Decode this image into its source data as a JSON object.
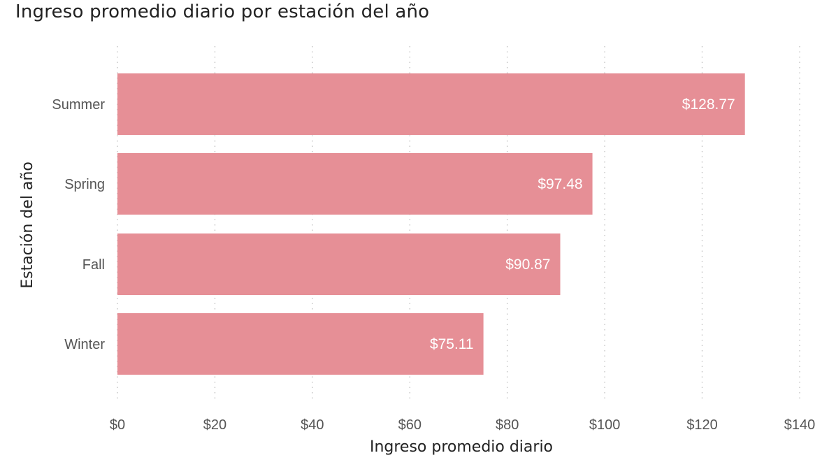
{
  "chart_data": {
    "type": "bar",
    "orientation": "horizontal",
    "title": "Ingreso promedio diario por estación del año",
    "xlabel": "Ingreso promedio diario",
    "ylabel": "Estación del año",
    "categories": [
      "Summer",
      "Spring",
      "Fall",
      "Winter"
    ],
    "values": [
      128.77,
      97.48,
      90.87,
      75.11
    ],
    "data_labels": [
      "$128.77",
      "$97.48",
      "$90.87",
      "$75.11"
    ],
    "xlim": [
      0,
      140
    ],
    "x_ticks": [
      0,
      20,
      40,
      60,
      80,
      100,
      120,
      140
    ],
    "x_tick_labels": [
      "$0",
      "$20",
      "$40",
      "$60",
      "$80",
      "$100",
      "$120",
      "$140"
    ],
    "grid": "vertical dotted",
    "bar_color": "#e68f96",
    "legend": "none"
  }
}
